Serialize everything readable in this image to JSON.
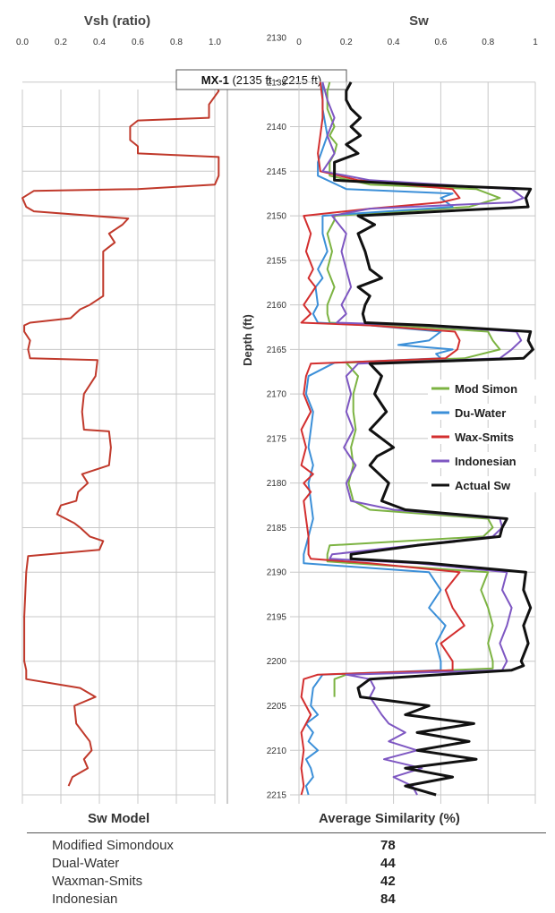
{
  "chart_data": [
    {
      "type": "line",
      "title": "Vsh (ratio)",
      "xlim": [
        0.0,
        1.0
      ],
      "x_ticks": [
        "0.0",
        "0.2",
        "0.4",
        "0.6",
        "0.8",
        "1.0"
      ],
      "ylim": [
        2135,
        2216
      ],
      "y_reversed": true,
      "grid": true,
      "annotation": {
        "bold": "MX-1",
        "normal": " (2135 ft - 2215 ft)"
      },
      "series": [
        {
          "color": "#c0392b",
          "depth": [
            2135,
            2136,
            2137.5,
            2139,
            2139.3,
            2140,
            2141.5,
            2142.2,
            2143,
            2143.4,
            2144,
            2145.5,
            2146.5,
            2147,
            2147.2,
            2148,
            2149,
            2149.5,
            2150.3,
            2151,
            2152,
            2153,
            2154,
            2155,
            2157,
            2159,
            2160,
            2160.5,
            2161.5,
            2162,
            2162.3,
            2163,
            2164,
            2165,
            2166,
            2166.2,
            2168,
            2170,
            2172,
            2174,
            2174.2,
            2176,
            2178,
            2179,
            2180,
            2181,
            2182,
            2182.5,
            2183.5,
            2184.5,
            2185,
            2186,
            2186.5,
            2187.5,
            2188.2,
            2190,
            2195,
            2200,
            2201,
            2202,
            2203,
            2204,
            2205,
            2207,
            2209,
            2210,
            2211,
            2212,
            2213,
            2214
          ],
          "vsh": [
            1.0,
            1.02,
            0.97,
            0.97,
            0.6,
            0.56,
            0.56,
            0.6,
            0.6,
            1.02,
            1.02,
            1.02,
            1.0,
            0.6,
            0.06,
            0.0,
            0.02,
            0.06,
            0.55,
            0.52,
            0.45,
            0.48,
            0.42,
            0.42,
            0.42,
            0.42,
            0.35,
            0.3,
            0.25,
            0.04,
            0.01,
            0.01,
            0.04,
            0.03,
            0.04,
            0.39,
            0.38,
            0.32,
            0.31,
            0.32,
            0.45,
            0.46,
            0.45,
            0.31,
            0.34,
            0.29,
            0.28,
            0.2,
            0.18,
            0.27,
            0.3,
            0.35,
            0.42,
            0.4,
            0.03,
            0.02,
            0.01,
            0.01,
            0.02,
            0.02,
            0.3,
            0.38,
            0.27,
            0.28,
            0.35,
            0.36,
            0.32,
            0.34,
            0.26,
            0.24
          ]
        }
      ]
    },
    {
      "type": "line",
      "title": "Sw",
      "ylabel": "Depth (ft)",
      "xlim": [
        0,
        1
      ],
      "x_ticks": [
        "0",
        "0.2",
        "0.4",
        "0.6",
        "0.8",
        "1"
      ],
      "ylim": [
        2130,
        2216
      ],
      "y_ticks": [
        2130,
        2135,
        2140,
        2145,
        2150,
        2155,
        2160,
        2165,
        2170,
        2175,
        2180,
        2185,
        2190,
        2195,
        2200,
        2205,
        2210,
        2215
      ],
      "y_reversed": true,
      "grid": true,
      "legend": "right",
      "series": [
        {
          "name": "Mod Simon",
          "color": "#7cb342",
          "depth": [
            2135,
            2136,
            2138,
            2140,
            2141,
            2142,
            2143,
            2144,
            2145,
            2145.5,
            2146.5,
            2147,
            2148,
            2149,
            2150,
            2150.5,
            2152,
            2154,
            2156,
            2158,
            2160,
            2161,
            2162,
            2162.3,
            2163,
            2164,
            2165,
            2166,
            2166.5,
            2168,
            2170,
            2172,
            2174,
            2176,
            2178,
            2180,
            2182,
            2183,
            2184,
            2185,
            2186,
            2187,
            2188,
            2188.8,
            2190,
            2192,
            2194,
            2196,
            2198,
            2200,
            2200.8,
            2201.5,
            2202,
            2203,
            2204
          ],
          "sw": [
            0.13,
            0.12,
            0.12,
            0.15,
            0.13,
            0.16,
            0.15,
            0.13,
            0.13,
            0.13,
            0.3,
            0.75,
            0.85,
            0.72,
            0.15,
            0.15,
            0.12,
            0.14,
            0.12,
            0.15,
            0.12,
            0.12,
            0.13,
            0.4,
            0.8,
            0.82,
            0.85,
            0.7,
            0.2,
            0.25,
            0.23,
            0.23,
            0.24,
            0.22,
            0.23,
            0.21,
            0.23,
            0.3,
            0.8,
            0.82,
            0.78,
            0.13,
            0.12,
            0.12,
            0.8,
            0.77,
            0.8,
            0.82,
            0.8,
            0.82,
            0.82,
            0.2,
            0.15,
            0.15,
            0.15
          ]
        },
        {
          "name": "Du-Water",
          "color": "#3b8fd8",
          "depth": [
            2135,
            2138,
            2141,
            2144,
            2145.5,
            2147,
            2147.5,
            2148,
            2149,
            2150,
            2152,
            2154,
            2156,
            2157,
            2158,
            2160,
            2161,
            2162,
            2162.3,
            2163,
            2164,
            2164.5,
            2165,
            2165.5,
            2166,
            2166.5,
            2168,
            2170,
            2172,
            2174,
            2176,
            2178,
            2180,
            2182,
            2184,
            2186,
            2188,
            2189,
            2190,
            2192,
            2194,
            2196,
            2198,
            2200,
            2201,
            2201.5,
            2203,
            2205,
            2206,
            2207,
            2208,
            2209,
            2210,
            2211,
            2212,
            2213,
            2214,
            2215
          ],
          "sw": [
            0.1,
            0.1,
            0.12,
            0.08,
            0.08,
            0.2,
            0.65,
            0.6,
            0.65,
            0.1,
            0.1,
            0.12,
            0.08,
            0.1,
            0.07,
            0.08,
            0.06,
            0.08,
            0.3,
            0.6,
            0.55,
            0.42,
            0.65,
            0.58,
            0.6,
            0.15,
            0.04,
            0.03,
            0.06,
            0.05,
            0.04,
            0.06,
            0.04,
            0.05,
            0.06,
            0.04,
            0.02,
            0.02,
            0.55,
            0.6,
            0.55,
            0.62,
            0.58,
            0.6,
            0.6,
            0.1,
            0.06,
            0.05,
            0.08,
            0.03,
            0.06,
            0.04,
            0.08,
            0.03,
            0.05,
            0.06,
            0.03,
            0.04
          ]
        },
        {
          "name": "Wax-Smits",
          "color": "#d32f2f",
          "depth": [
            2135,
            2137,
            2139,
            2141,
            2143,
            2145,
            2146,
            2147,
            2148,
            2148.5,
            2149.2,
            2150,
            2152,
            2154,
            2156,
            2157,
            2158,
            2160,
            2161,
            2162,
            2162.3,
            2163,
            2164,
            2165,
            2166,
            2166.6,
            2168,
            2170,
            2172,
            2174,
            2176,
            2178,
            2179,
            2180,
            2181,
            2182,
            2184,
            2186,
            2188,
            2188.5,
            2189,
            2190,
            2192,
            2194,
            2196,
            2198,
            2200,
            2201,
            2201.5,
            2202,
            2204,
            2206,
            2208,
            2210,
            2212,
            2214,
            2215
          ],
          "sw": [
            0.09,
            0.1,
            0.1,
            0.09,
            0.08,
            0.09,
            0.25,
            0.65,
            0.68,
            0.6,
            0.3,
            0.02,
            0.05,
            0.03,
            0.06,
            0.04,
            0.07,
            0.02,
            0.05,
            0.01,
            0.3,
            0.66,
            0.68,
            0.67,
            0.62,
            0.05,
            0.03,
            0.02,
            0.05,
            0.01,
            0.03,
            0.01,
            0.06,
            0.02,
            0.05,
            0.02,
            0.03,
            0.04,
            0.04,
            0.05,
            0.3,
            0.68,
            0.62,
            0.65,
            0.7,
            0.6,
            0.65,
            0.65,
            0.08,
            0.02,
            0.01,
            0.05,
            0.01,
            0.02,
            0.01,
            0.02,
            0.01
          ]
        },
        {
          "name": "Indonesian",
          "color": "#7e57c2",
          "depth": [
            2135,
            2137,
            2139,
            2141,
            2143,
            2145,
            2146,
            2147,
            2148,
            2148.5,
            2149.2,
            2150,
            2152,
            2154,
            2156,
            2158,
            2160,
            2161,
            2162,
            2162.3,
            2163,
            2164,
            2165,
            2166,
            2166.6,
            2168,
            2170,
            2172,
            2174,
            2176,
            2178,
            2180,
            2182,
            2183,
            2184,
            2185,
            2186,
            2188,
            2188.5,
            2189,
            2190,
            2192,
            2194,
            2196,
            2198,
            2200,
            2201,
            2201.5,
            2202,
            2203,
            2204,
            2206,
            2207,
            2208,
            2209,
            2210,
            2211,
            2212,
            2213,
            2214,
            2215
          ],
          "sw": [
            0.1,
            0.12,
            0.15,
            0.12,
            0.15,
            0.1,
            0.3,
            0.9,
            0.95,
            0.9,
            0.3,
            0.14,
            0.2,
            0.18,
            0.2,
            0.22,
            0.18,
            0.2,
            0.16,
            0.5,
            0.92,
            0.94,
            0.9,
            0.85,
            0.25,
            0.2,
            0.22,
            0.2,
            0.23,
            0.19,
            0.24,
            0.2,
            0.22,
            0.4,
            0.85,
            0.86,
            0.82,
            0.14,
            0.13,
            0.5,
            0.88,
            0.86,
            0.9,
            0.88,
            0.85,
            0.88,
            0.86,
            0.2,
            0.3,
            0.32,
            0.3,
            0.35,
            0.38,
            0.45,
            0.38,
            0.5,
            0.36,
            0.52,
            0.4,
            0.48,
            0.5
          ]
        },
        {
          "name": "Actual Sw",
          "color": "#111111",
          "depth": [
            2135,
            2136,
            2137,
            2138,
            2139,
            2140,
            2141,
            2142,
            2143,
            2144,
            2145,
            2146,
            2146.5,
            2147,
            2148,
            2149,
            2149.5,
            2150,
            2151,
            2152,
            2154,
            2156,
            2157,
            2158,
            2159,
            2160,
            2161,
            2162,
            2162.3,
            2163,
            2164,
            2165,
            2166,
            2166.6,
            2168,
            2170,
            2172,
            2174,
            2176,
            2177,
            2178,
            2180,
            2182,
            2183,
            2184,
            2185,
            2186,
            2187,
            2188,
            2188.5,
            2189,
            2190,
            2192,
            2194,
            2196,
            2198,
            2200,
            2200.5,
            2201,
            2202,
            2203,
            2204,
            2205,
            2206,
            2207,
            2208,
            2209,
            2210,
            2211,
            2212,
            2213,
            2214,
            2215
          ],
          "sw": [
            0.22,
            0.2,
            0.2,
            0.22,
            0.26,
            0.22,
            0.26,
            0.2,
            0.25,
            0.15,
            0.15,
            0.15,
            0.5,
            0.98,
            0.96,
            0.97,
            0.6,
            0.25,
            0.32,
            0.25,
            0.28,
            0.3,
            0.35,
            0.25,
            0.3,
            0.28,
            0.27,
            0.28,
            0.55,
            0.98,
            0.97,
            0.99,
            0.95,
            0.3,
            0.35,
            0.32,
            0.37,
            0.3,
            0.4,
            0.33,
            0.3,
            0.38,
            0.35,
            0.45,
            0.88,
            0.86,
            0.85,
            0.5,
            0.22,
            0.22,
            0.55,
            0.96,
            0.95,
            0.98,
            0.95,
            0.97,
            0.94,
            0.95,
            0.9,
            0.3,
            0.25,
            0.26,
            0.55,
            0.45,
            0.74,
            0.5,
            0.72,
            0.5,
            0.75,
            0.45,
            0.65,
            0.45,
            0.58
          ]
        }
      ]
    }
  ],
  "table": {
    "headers": [
      "Sw Model",
      "Average Similarity (%)"
    ],
    "rows": [
      {
        "model": "Modified Simondoux",
        "value": "78"
      },
      {
        "model": "Dual-Water",
        "value": "44"
      },
      {
        "model": "Waxman-Smits",
        "value": "42"
      },
      {
        "model": "Indonesian",
        "value": "84"
      }
    ]
  }
}
